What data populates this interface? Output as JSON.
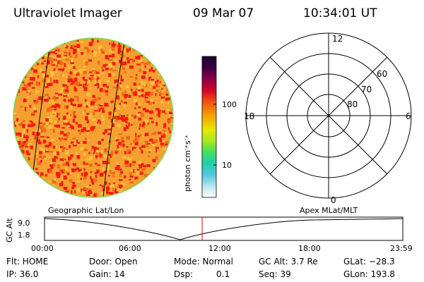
{
  "header": {
    "instrument": "Ultraviolet Imager",
    "date": "09 Mar 07",
    "time": "10:34:01 UT"
  },
  "colorbar": {
    "unit_main": "photon cm",
    "unit_sup1": "-2",
    "unit_mid": "s",
    "unit_sup2": "-1",
    "ticks": [
      "100",
      "10"
    ],
    "scale": "log"
  },
  "polar_plot": {
    "mlt_labels": [
      "12",
      "18",
      "6",
      "0"
    ],
    "lat_labels": [
      "60",
      "70",
      "80"
    ]
  },
  "timeline": {
    "left_title": "Geographic Lat/Lon",
    "right_title": "Apex  MLat/MLT",
    "axis_label": "GC Alt",
    "y_ticks": [
      "9.0",
      "1.8"
    ],
    "x_ticks": [
      "00:00",
      "06:00",
      "12:00",
      "18:00",
      "23:59"
    ],
    "current_time_fraction": 0.44,
    "marker_color": "#e00000"
  },
  "status": {
    "filter": "Flt: HOME",
    "door": "Door: Open",
    "mode": "Mode: Normal",
    "gc_alt": "GC Alt: 3.7 Re",
    "glat": "GLat: −28.3",
    "ip": "IP: 36.0",
    "gain": "Gain: 14",
    "dsp_label": "Dsp:",
    "dsp_value": "0.1",
    "seq": "Seq: 39",
    "glon": "GLon: 193.8"
  },
  "colors": {
    "image_base": "#f5a030",
    "image_hot": "#ee1c10",
    "limb": "#7ed957"
  }
}
